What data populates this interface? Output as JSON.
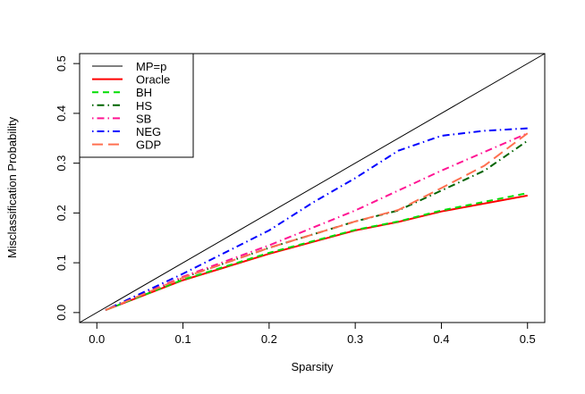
{
  "chart_data": {
    "type": "line",
    "title": "",
    "xlabel": "Sparsity",
    "ylabel": "Misclassification Probability",
    "xlim": [
      -0.02,
      0.52
    ],
    "ylim": [
      -0.02,
      0.52
    ],
    "xticks": [
      "0.0",
      "0.1",
      "0.2",
      "0.3",
      "0.4",
      "0.5"
    ],
    "yticks": [
      "0.0",
      "0.1",
      "0.2",
      "0.3",
      "0.4",
      "0.5"
    ],
    "grid": false,
    "legend_position": "top-left",
    "series": [
      {
        "name": "MP=p",
        "color": "#000000",
        "dash": "solid",
        "x": [
          -0.02,
          0.52
        ],
        "y": [
          -0.02,
          0.52
        ]
      },
      {
        "name": "Oracle",
        "color": "#ff0000",
        "dash": "solid",
        "x": [
          0.01,
          0.1,
          0.2,
          0.3,
          0.35,
          0.4,
          0.5
        ],
        "y": [
          0.005,
          0.065,
          0.118,
          0.165,
          0.182,
          0.203,
          0.235
        ]
      },
      {
        "name": "BH",
        "color": "#00dd00",
        "dash": "dashed",
        "x": [
          0.01,
          0.1,
          0.2,
          0.3,
          0.35,
          0.4,
          0.5
        ],
        "y": [
          0.005,
          0.066,
          0.12,
          0.166,
          0.183,
          0.205,
          0.24
        ]
      },
      {
        "name": "HS",
        "color": "#006400",
        "dash": "dotdash",
        "x": [
          0.01,
          0.1,
          0.2,
          0.3,
          0.35,
          0.4,
          0.45,
          0.5
        ],
        "y": [
          0.005,
          0.07,
          0.13,
          0.183,
          0.205,
          0.245,
          0.285,
          0.345
        ]
      },
      {
        "name": "SB",
        "color": "#ff1493",
        "dash": "dotdash",
        "x": [
          0.01,
          0.1,
          0.2,
          0.3,
          0.4,
          0.5
        ],
        "y": [
          0.005,
          0.072,
          0.135,
          0.205,
          0.285,
          0.36
        ]
      },
      {
        "name": "NEG",
        "color": "#0000ff",
        "dash": "dotdash",
        "x": [
          0.01,
          0.1,
          0.2,
          0.25,
          0.3,
          0.35,
          0.4,
          0.45,
          0.5
        ],
        "y": [
          0.005,
          0.078,
          0.165,
          0.22,
          0.27,
          0.325,
          0.355,
          0.365,
          0.37
        ]
      },
      {
        "name": "GDP",
        "color": "#ff7050",
        "dash": "longdash",
        "x": [
          0.01,
          0.1,
          0.2,
          0.3,
          0.35,
          0.4,
          0.45,
          0.5
        ],
        "y": [
          0.005,
          0.07,
          0.13,
          0.183,
          0.206,
          0.25,
          0.295,
          0.36
        ]
      }
    ]
  }
}
